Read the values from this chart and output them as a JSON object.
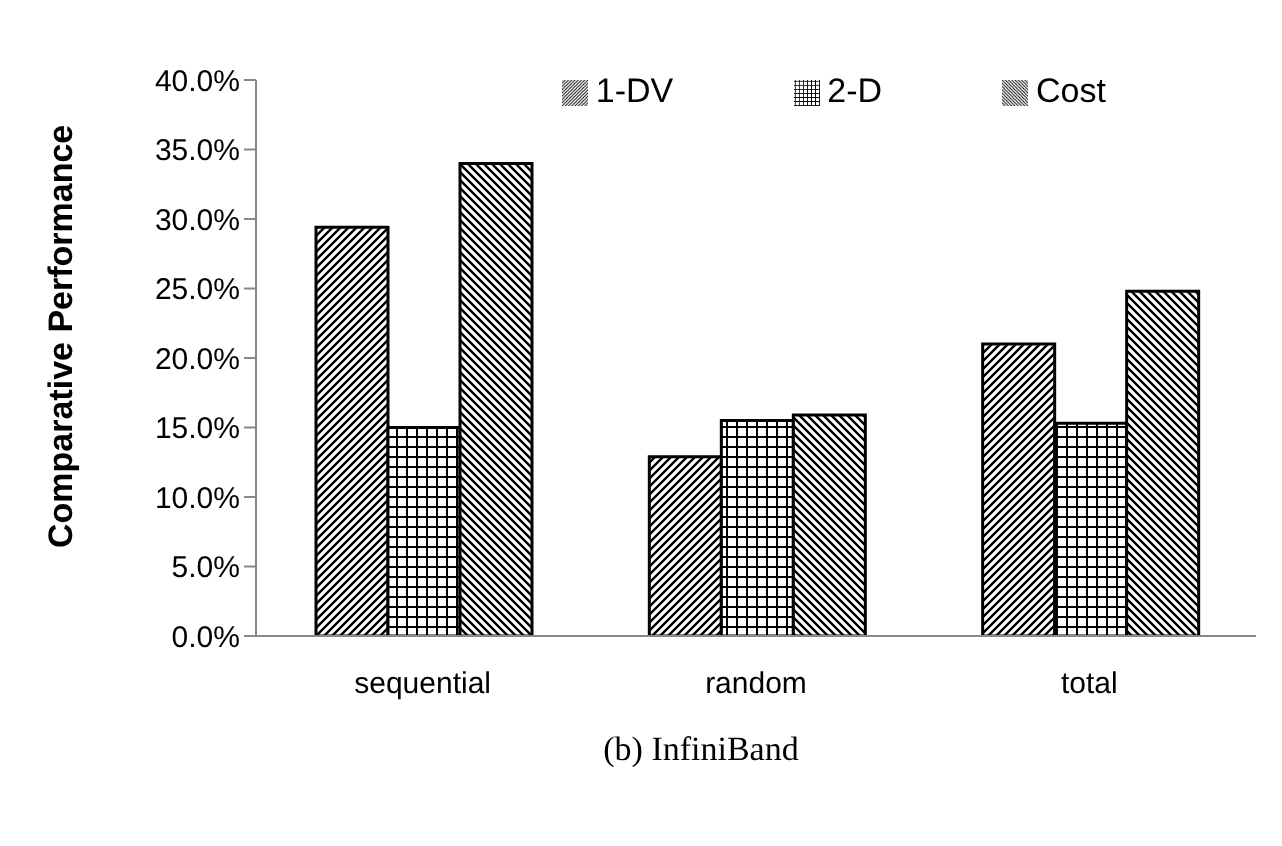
{
  "chart_data": {
    "type": "bar",
    "title": "(b) InfiniBand",
    "ylabel": "Comparative Performance",
    "categories": [
      "sequential",
      "random",
      "total"
    ],
    "series": [
      {
        "name": "1-DV",
        "color": "#000000",
        "values": [
          29.4,
          12.9,
          21.0
        ]
      },
      {
        "name": "2-D",
        "color": "#000000",
        "values": [
          15.0,
          15.5,
          15.3
        ]
      },
      {
        "name": "Cost",
        "color": "#000000",
        "values": [
          34.0,
          15.9,
          24.8
        ]
      }
    ],
    "ylim": [
      0,
      40
    ],
    "yticks": [
      {
        "value": 0,
        "label": "0.0%"
      },
      {
        "value": 5,
        "label": "5.0%"
      },
      {
        "value": 10,
        "label": "10.0%"
      },
      {
        "value": 15,
        "label": "15.0%"
      },
      {
        "value": 20,
        "label": "20.0%"
      },
      {
        "value": 25,
        "label": "25.0%"
      },
      {
        "value": 30,
        "label": "30.0%"
      },
      {
        "value": 35,
        "label": "35.0%"
      },
      {
        "value": 40,
        "label": "40.0%"
      }
    ],
    "grid": false,
    "legend": "top right"
  }
}
